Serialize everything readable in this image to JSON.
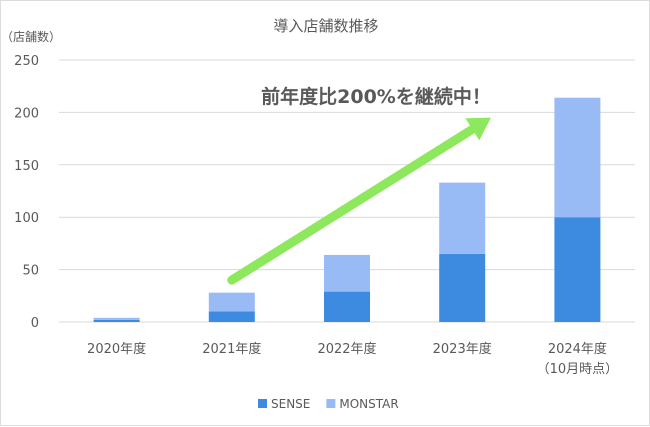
{
  "chart_data": {
    "type": "bar",
    "stacked": true,
    "title": "導入店舗数推移",
    "ylabel": "（店舗数）",
    "xlabel": "",
    "ylim": [
      0,
      250
    ],
    "yticks": [
      0,
      50,
      100,
      150,
      200,
      250
    ],
    "grid": true,
    "legend_position": "bottom",
    "categories": [
      [
        "2020年度"
      ],
      [
        "2021年度"
      ],
      [
        "2022年度"
      ],
      [
        "2023年度"
      ],
      [
        "2024年度",
        "（10月時点）"
      ]
    ],
    "series": [
      {
        "name": "SENSE",
        "color": "#3d8be0",
        "values": [
          2,
          10,
          29,
          65,
          100
        ]
      },
      {
        "name": "MONSTAR",
        "color": "#99bbf5",
        "values": [
          2,
          18,
          35,
          68,
          114
        ]
      }
    ],
    "annotation": {
      "text": "前年度比200%を継続中！",
      "arrow_color": "#8ee85e",
      "arrow_from": {
        "category_index": 1,
        "value": 40
      },
      "arrow_to": {
        "category_index": 3.25,
        "value": 195
      }
    }
  }
}
